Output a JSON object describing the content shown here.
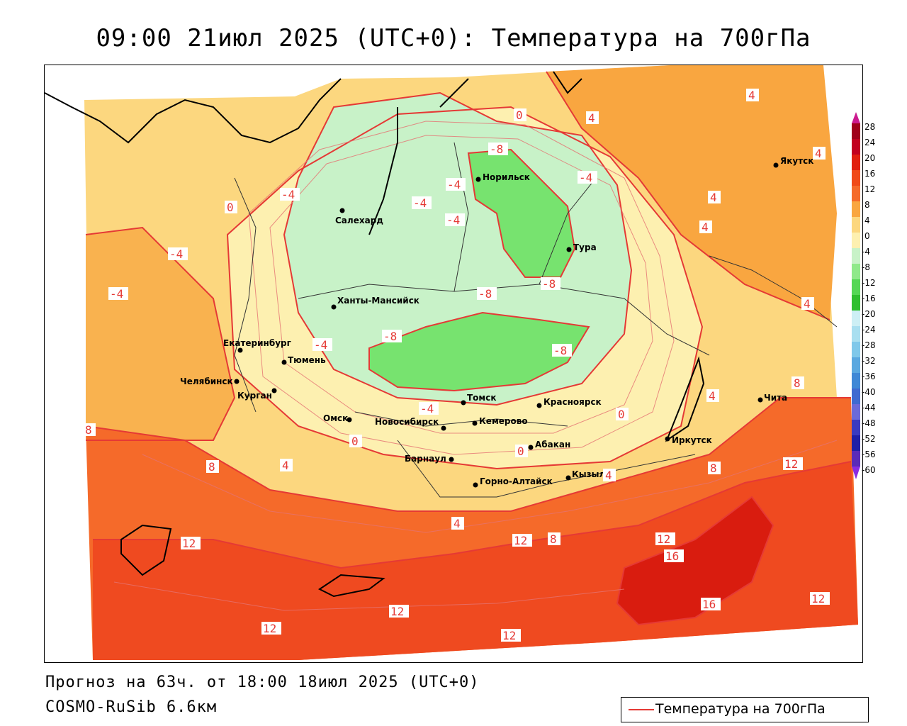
{
  "title": "09:00 21июл 2025 (UTC+0): Температура на 700гПа",
  "footer": {
    "forecast": "Прогноз на 63ч. от 18:00 18июл 2025 (UTC+0)",
    "model": "COSMO-RuSib 6.6км"
  },
  "legend": {
    "label": "Температура на 700гПа",
    "line_color": "#e53935"
  },
  "color_scale": {
    "ticks": [
      "28",
      "24",
      "20",
      "16",
      "12",
      "8",
      "4",
      "0",
      "-4",
      "-8",
      "-12",
      "-16",
      "-20",
      "-24",
      "-28",
      "-32",
      "-36",
      "-40",
      "-44",
      "-48",
      "-52",
      "-56",
      "-60"
    ]
  },
  "cities": [
    {
      "name": "Салехард"
    },
    {
      "name": "Норильск"
    },
    {
      "name": "Тура"
    },
    {
      "name": "Якутск"
    },
    {
      "name": "Ханты-Мансийск"
    },
    {
      "name": "Екатеринбург"
    },
    {
      "name": "Тюмень"
    },
    {
      "name": "Челябинск"
    },
    {
      "name": "Курган"
    },
    {
      "name": "Омск"
    },
    {
      "name": "Новосибирск"
    },
    {
      "name": "Томск"
    },
    {
      "name": "Кемерово"
    },
    {
      "name": "Красноярск"
    },
    {
      "name": "Абакан"
    },
    {
      "name": "Барнаул"
    },
    {
      "name": "Горно-Алтайск"
    },
    {
      "name": "Кызыл"
    },
    {
      "name": "Иркутск"
    },
    {
      "name": "Чита"
    }
  ],
  "isotherm_labels": [
    "4",
    "0",
    "-8",
    "-4",
    "-4",
    "-4",
    "-4",
    "4",
    "-4",
    "0",
    "-4",
    "4",
    "-8",
    "4",
    "4",
    "4",
    "-4",
    "-8",
    "-8",
    "-8",
    "-4",
    "0",
    "-4",
    "0",
    "0",
    "4",
    "4",
    "8",
    "8",
    "8",
    "4",
    "8",
    "12",
    "8",
    "12",
    "12",
    "12",
    "16",
    "16",
    "12",
    "12",
    "12",
    "12",
    "4"
  ]
}
